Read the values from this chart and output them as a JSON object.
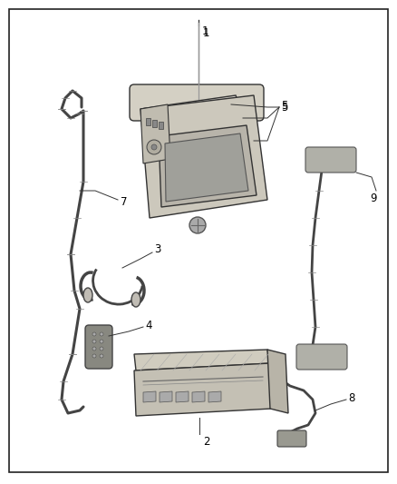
{
  "background_color": "#ffffff",
  "border_color": "#222222",
  "border_linewidth": 1.2,
  "fig_width": 4.38,
  "fig_height": 5.33,
  "dpi": 100,
  "line_color": "#333333",
  "fill_color": "#e8e4dc",
  "fill_color2": "#d0ccc0",
  "fill_color3": "#b8b4ac",
  "label_fontsize": 8.5,
  "leader_color": "#555555",
  "cable_color": "#444444"
}
